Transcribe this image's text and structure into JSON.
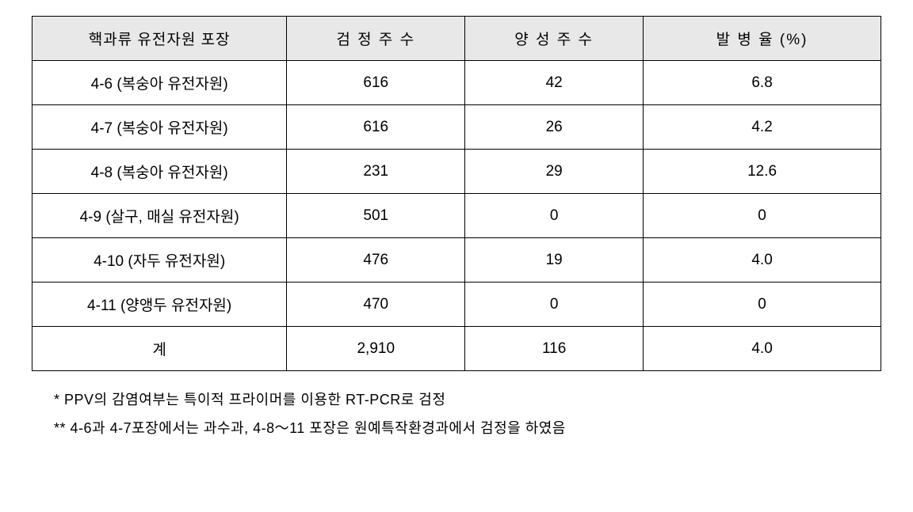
{
  "table": {
    "headers": {
      "col1": "핵과류 유전자원 포장",
      "col2": "검 정 주 수",
      "col3": "양 성 주 수",
      "col4": "발 병 율 (%)"
    },
    "rows": [
      {
        "label": "4-6 (복숭아 유전자원)",
        "tested": "616",
        "positive": "42",
        "rate": "6.8"
      },
      {
        "label": "4-7 (복숭아 유전자원)",
        "tested": "616",
        "positive": "26",
        "rate": "4.2"
      },
      {
        "label": "4-8 (복숭아 유전자원)",
        "tested": "231",
        "positive": "29",
        "rate": "12.6"
      },
      {
        "label": "4-9 (살구, 매실 유전자원)",
        "tested": "501",
        "positive": "0",
        "rate": "0"
      },
      {
        "label": "4-10 (자두 유전자원)",
        "tested": "476",
        "positive": "19",
        "rate": "4.0"
      },
      {
        "label": "4-11 (양앵두 유전자원)",
        "tested": "470",
        "positive": "0",
        "rate": "0"
      },
      {
        "label": "계",
        "tested": "2,910",
        "positive": "116",
        "rate": "4.0"
      }
    ]
  },
  "footnotes": {
    "note1": "* PPV의 감염여부는 특이적 프라이머를 이용한 RT-PCR로 검정",
    "note2": "** 4-6과 4-7포장에서는 과수과, 4-8～11 포장은 원예특작환경과에서 검정을 하였음"
  },
  "styling": {
    "header_bg": "#e8e8e8",
    "border_color": "#000000",
    "background": "#ffffff",
    "header_fontsize": 19,
    "cell_fontsize": 19,
    "footnote_fontsize": 18,
    "col_widths": [
      "30%",
      "21%",
      "21%",
      "28%"
    ]
  }
}
